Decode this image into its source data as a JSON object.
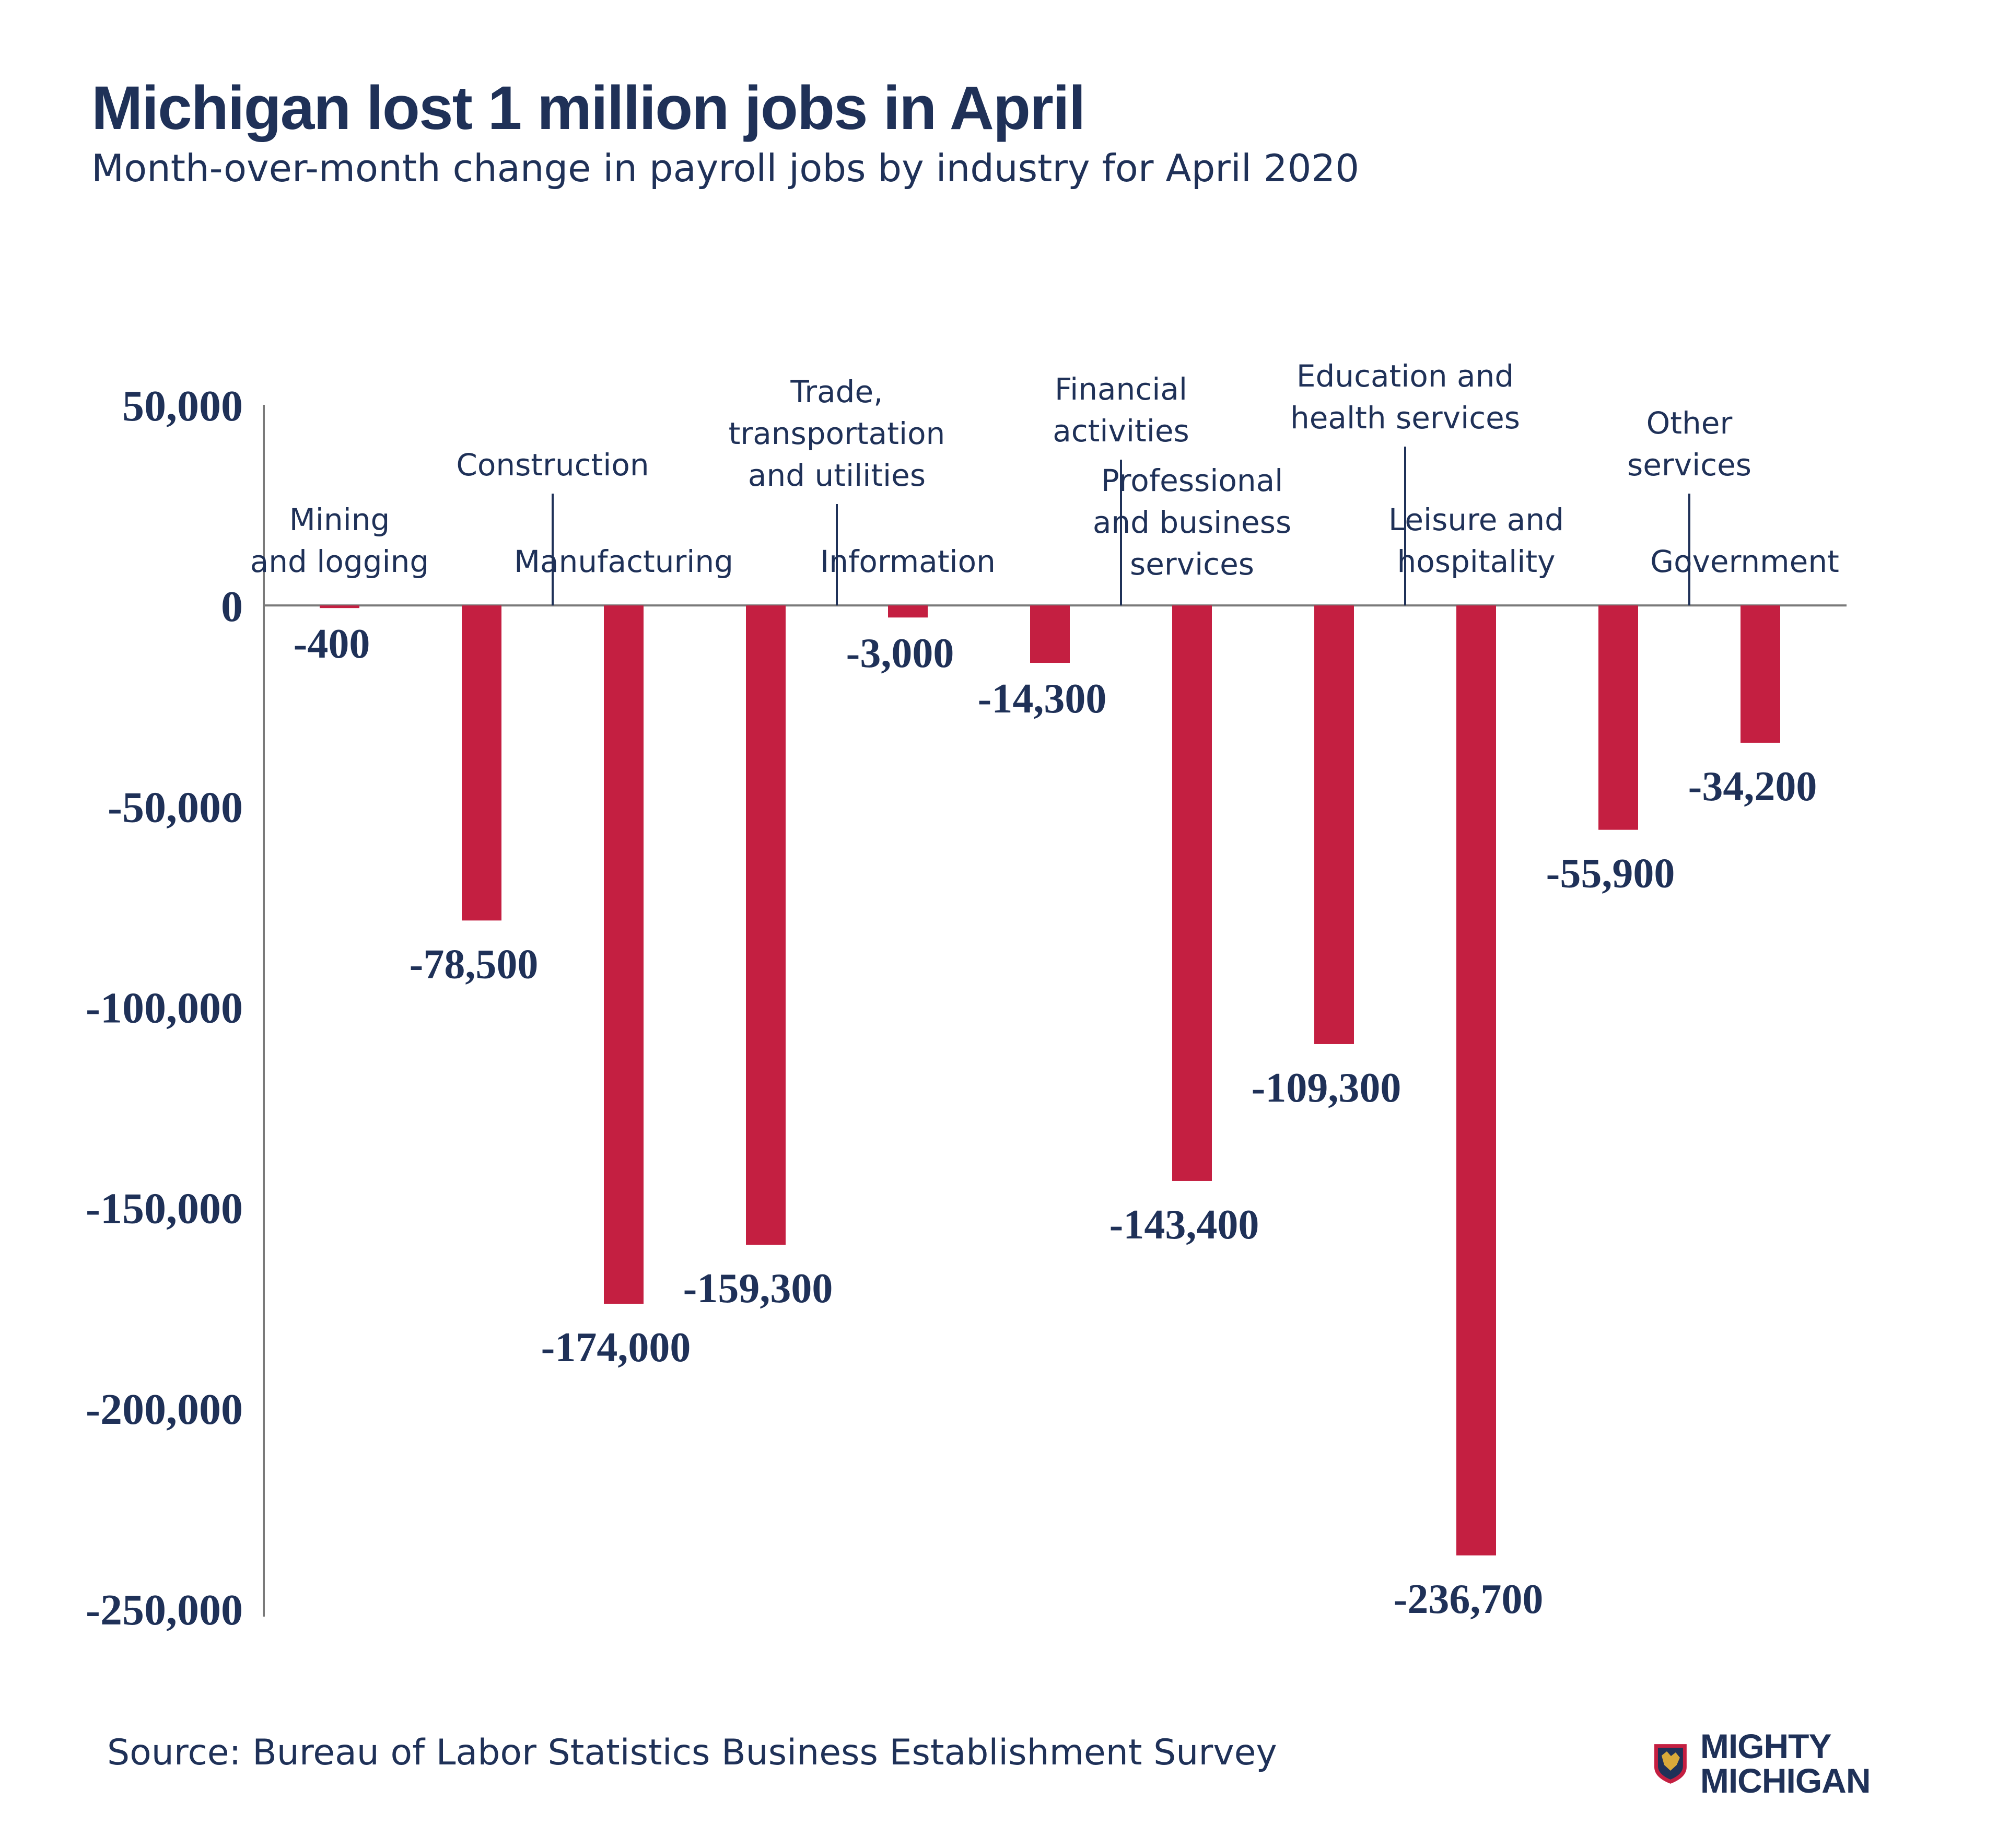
{
  "header": {
    "title": "Michigan lost 1 million jobs in April",
    "subtitle": "Month-over-month change in payroll jobs by industry for April 2020"
  },
  "footer": {
    "source": "Source: Bureau of Labor Statistics Business Establishment Survey",
    "brand": "MIGHTY MICHIGAN"
  },
  "colors": {
    "bar": "#c41f41",
    "text": "#1f3158",
    "axis": "#7a7a7a"
  },
  "chart_data": {
    "type": "bar",
    "title": "Michigan lost 1 million jobs in April",
    "subtitle": "Month-over-month change in payroll jobs by industry for April 2020",
    "categories": [
      [
        "Mining",
        "and logging"
      ],
      [
        "Construction"
      ],
      [
        "Manufacturing"
      ],
      [
        "Trade,",
        "transportation",
        "and utilities"
      ],
      [
        "Information"
      ],
      [
        "Financial",
        "activities"
      ],
      [
        "Professional",
        "and business",
        "services"
      ],
      [
        "Education and",
        "health services"
      ],
      [
        "Leisure and",
        "hospitality"
      ],
      [
        "Other",
        "services"
      ],
      [
        "Government"
      ]
    ],
    "values": [
      -400,
      -78500,
      -174000,
      -159300,
      -3000,
      -14300,
      -143400,
      -109300,
      -236700,
      -55900,
      -34200
    ],
    "value_labels": [
      "-400",
      "-78,500",
      "-174,000",
      "-159,300",
      "-3,000",
      "-14,300",
      "-143,400",
      "-109,300",
      "-236,700",
      "-55,900",
      "-34,200"
    ],
    "yticks": [
      50000,
      0,
      -50000,
      -100000,
      -150000,
      -200000,
      -250000
    ],
    "ytick_labels": [
      "50,000",
      "0",
      "-50,000",
      "-100,000",
      "-150,000",
      "-200,000",
      "-250,000"
    ],
    "ylim": [
      -250000,
      50000
    ],
    "xlabel": "",
    "ylabel": "",
    "grid": false,
    "legend": "none"
  }
}
